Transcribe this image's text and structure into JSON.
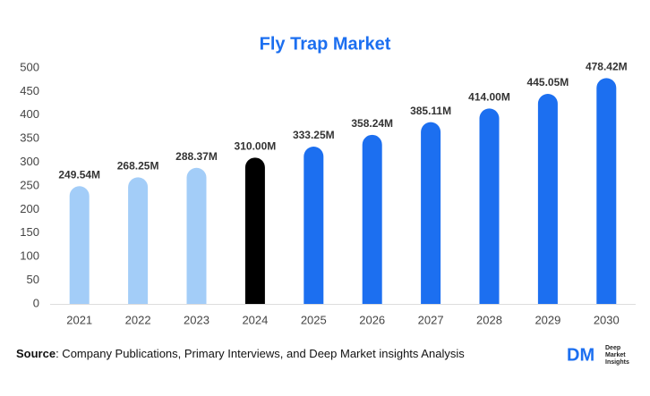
{
  "chart_data": {
    "type": "bar",
    "title": "Fly Trap Market",
    "categories": [
      "2021",
      "2022",
      "2023",
      "2024",
      "2025",
      "2026",
      "2027",
      "2028",
      "2029",
      "2030"
    ],
    "values": [
      249.54,
      268.25,
      288.37,
      310.0,
      333.25,
      358.24,
      385.11,
      414.0,
      445.05,
      478.42
    ],
    "value_labels": [
      "249.54M",
      "268.25M",
      "288.37M",
      "310.00M",
      "333.25M",
      "358.24M",
      "385.11M",
      "414.00M",
      "445.05M",
      "478.42M"
    ],
    "colors": [
      "#a3cdf8",
      "#a3cdf8",
      "#a3cdf8",
      "#000000",
      "#1c6ff0",
      "#1c6ff0",
      "#1c6ff0",
      "#1c6ff0",
      "#1c6ff0",
      "#1c6ff0"
    ],
    "ylim": [
      0,
      500
    ],
    "yticks": [
      0,
      50,
      100,
      150,
      200,
      250,
      300,
      350,
      400,
      450,
      500
    ],
    "grid": false
  },
  "source": {
    "label": "Source",
    "text": ": Company Publications, Primary Interviews, and Deep Market insights Analysis"
  },
  "logo": {
    "mark": "DM",
    "lines": [
      "Deep",
      "Market",
      "Insights"
    ]
  }
}
